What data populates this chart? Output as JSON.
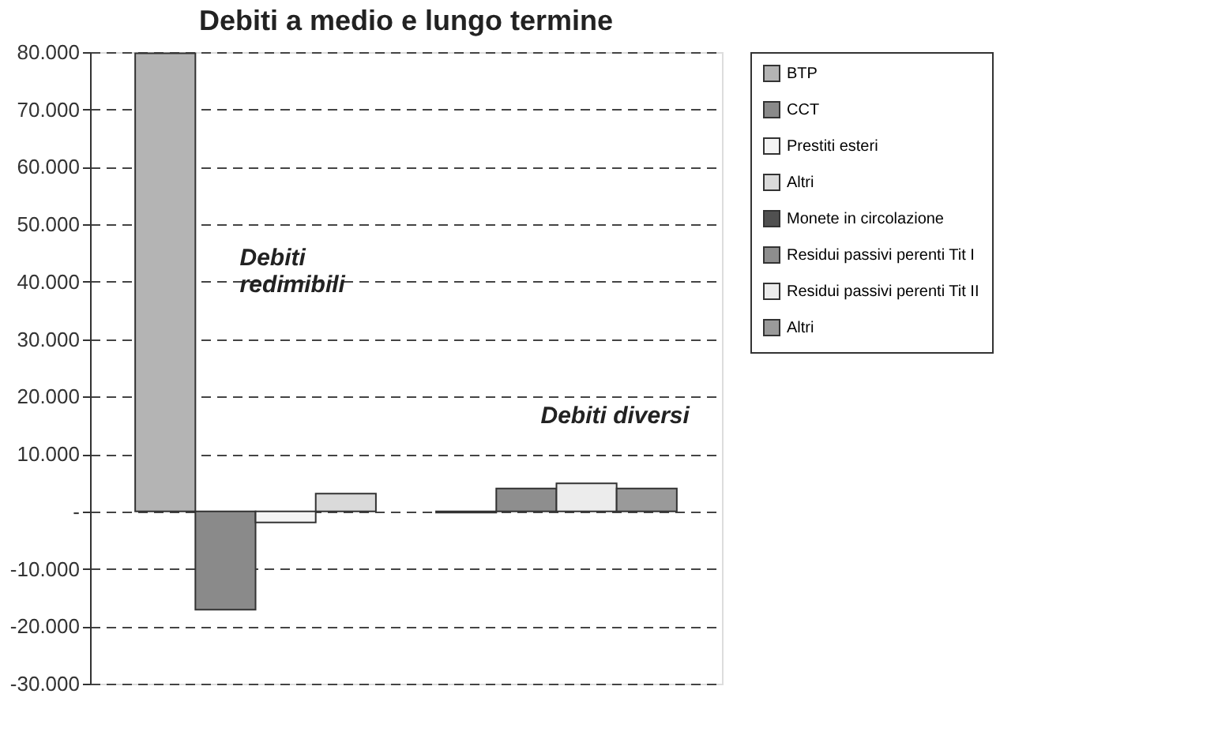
{
  "chart_data": {
    "type": "bar",
    "title": "Debiti a medio e lungo termine",
    "categories": [
      null,
      null
    ],
    "series": [
      {
        "name": "BTP",
        "color": "#b4b4b4",
        "values": [
          79800,
          null
        ]
      },
      {
        "name": "CCT",
        "color": "#8a8a8a",
        "values": [
          -17100,
          null
        ]
      },
      {
        "name": "Prestiti esteri",
        "color": "#f4f4f4",
        "values": [
          -1900,
          null
        ]
      },
      {
        "name": "Altri",
        "color": "#dadada",
        "values": [
          3100,
          null
        ]
      },
      {
        "name": "Monete in circolazione",
        "color": "#505050",
        "values": [
          null,
          -200
        ]
      },
      {
        "name": "Residui passivi perenti Tit I",
        "color": "#8e8e8e",
        "values": [
          null,
          4000
        ]
      },
      {
        "name": "Residui passivi perenti Tit II",
        "color": "#ececec",
        "values": [
          null,
          4900
        ]
      },
      {
        "name": "Altri",
        "color": "#9a9a9a",
        "values": [
          null,
          4000
        ]
      }
    ],
    "ylim": [
      -30000,
      80000
    ],
    "yticks": [
      {
        "value": -30000,
        "label": "-30.000"
      },
      {
        "value": -20000,
        "label": "-20.000"
      },
      {
        "value": -10000,
        "label": "-10.000"
      },
      {
        "value": 0,
        "label": "-"
      },
      {
        "value": 10000,
        "label": "10.000"
      },
      {
        "value": 20000,
        "label": "20.000"
      },
      {
        "value": 30000,
        "label": "30.000"
      },
      {
        "value": 40000,
        "label": "40.000"
      },
      {
        "value": 50000,
        "label": "50.000"
      },
      {
        "value": 60000,
        "label": "60.000"
      },
      {
        "value": 70000,
        "label": "70.000"
      },
      {
        "value": 80000,
        "label": "80.000"
      }
    ],
    "annotations": [
      "Debiti\nredimibili",
      "Debiti diversi"
    ],
    "grid": "y",
    "line_style": "dashed",
    "legend": "right"
  }
}
